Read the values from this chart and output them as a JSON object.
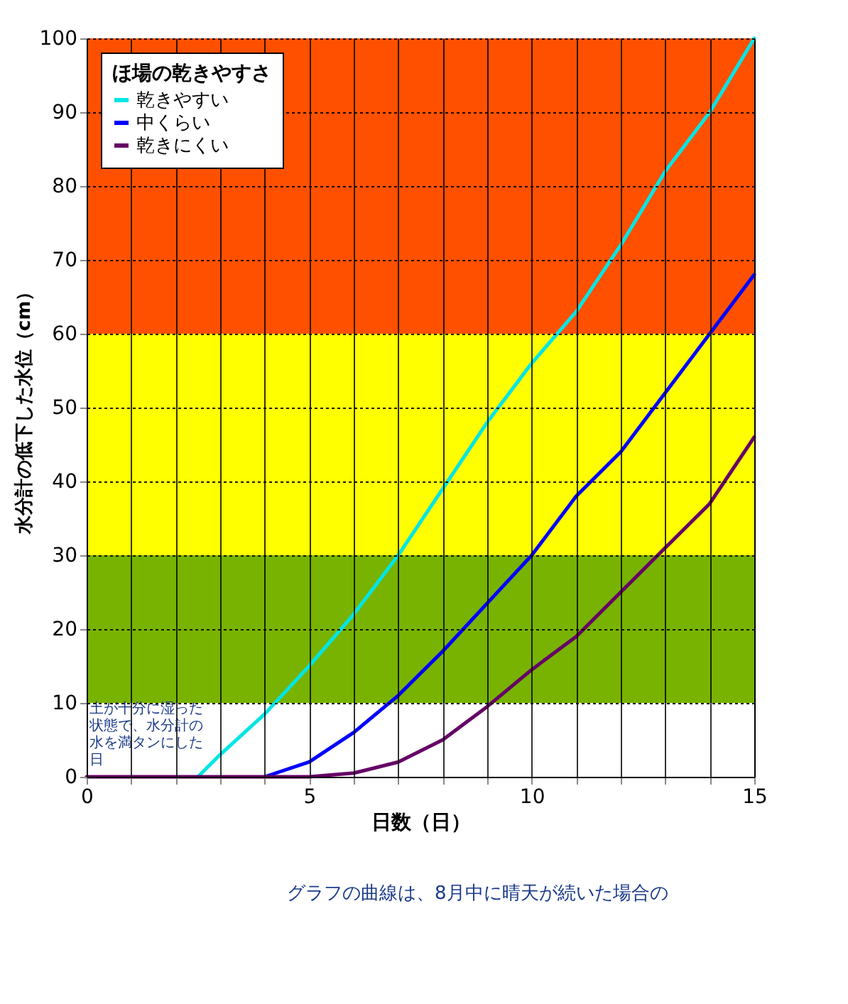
{
  "chart_data": {
    "type": "line",
    "xlabel": "日数（日）",
    "ylabel": "水分計の低下した水位（cm）",
    "legend_title": "ほ場の乾きやすさ",
    "xlim": [
      0,
      15
    ],
    "ylim": [
      0,
      100
    ],
    "xticks": [
      0,
      {
        "value": 1,
        "label": null
      },
      {
        "value": 2,
        "label": null
      },
      {
        "value": 3,
        "label": null
      },
      {
        "value": 4,
        "label": null
      },
      5,
      {
        "value": 6,
        "label": null
      },
      {
        "value": 7,
        "label": null
      },
      {
        "value": 8,
        "label": null
      },
      {
        "value": 9,
        "label": null
      },
      10,
      {
        "value": 11,
        "label": null
      },
      {
        "value": 12,
        "label": null
      },
      {
        "value": 13,
        "label": null
      },
      {
        "value": 14,
        "label": null
      },
      15
    ],
    "yticks": [
      0,
      10,
      20,
      30,
      40,
      50,
      60,
      70,
      80,
      90,
      100
    ],
    "x": [
      0,
      1,
      2,
      2.5,
      3,
      4,
      5,
      6,
      7,
      8,
      9,
      10,
      11,
      12,
      13,
      14,
      15
    ],
    "series": [
      {
        "name": "乾きやすい",
        "color": "#00e5e5",
        "values": [
          null,
          null,
          null,
          0,
          3,
          8.5,
          15,
          22,
          30,
          39,
          48,
          56,
          63,
          72,
          82,
          90,
          100
        ]
      },
      {
        "name": "中くらい",
        "color": "#0000ff",
        "values": [
          null,
          null,
          null,
          null,
          null,
          0,
          2,
          6,
          11,
          17,
          23.5,
          30,
          38,
          44,
          52,
          60,
          68
        ]
      },
      {
        "name": "乾きにくい",
        "color": "#660066",
        "values": [
          0,
          0,
          0,
          0,
          0,
          0,
          0,
          0.5,
          2,
          5,
          9.5,
          14.5,
          19,
          25,
          31,
          37,
          46
        ]
      }
    ],
    "bands": [
      {
        "axis": "y",
        "from": 10,
        "to": 30,
        "color": "#77b300"
      },
      {
        "axis": "y",
        "from": 30,
        "to": 60,
        "color": "#ffff00"
      },
      {
        "axis": "y",
        "from": 60,
        "to": 100,
        "color": "#ff5000"
      }
    ],
    "grid": true,
    "legend": "top left",
    "line_style": "solid",
    "marker": "none",
    "annotations": [
      {
        "text": "土が十分に湿った状態で、水分計の水を満タンにした日",
        "x": 0,
        "y": 0
      },
      "グラフの曲線は、8月中に晴天が続いた場合の"
    ]
  }
}
